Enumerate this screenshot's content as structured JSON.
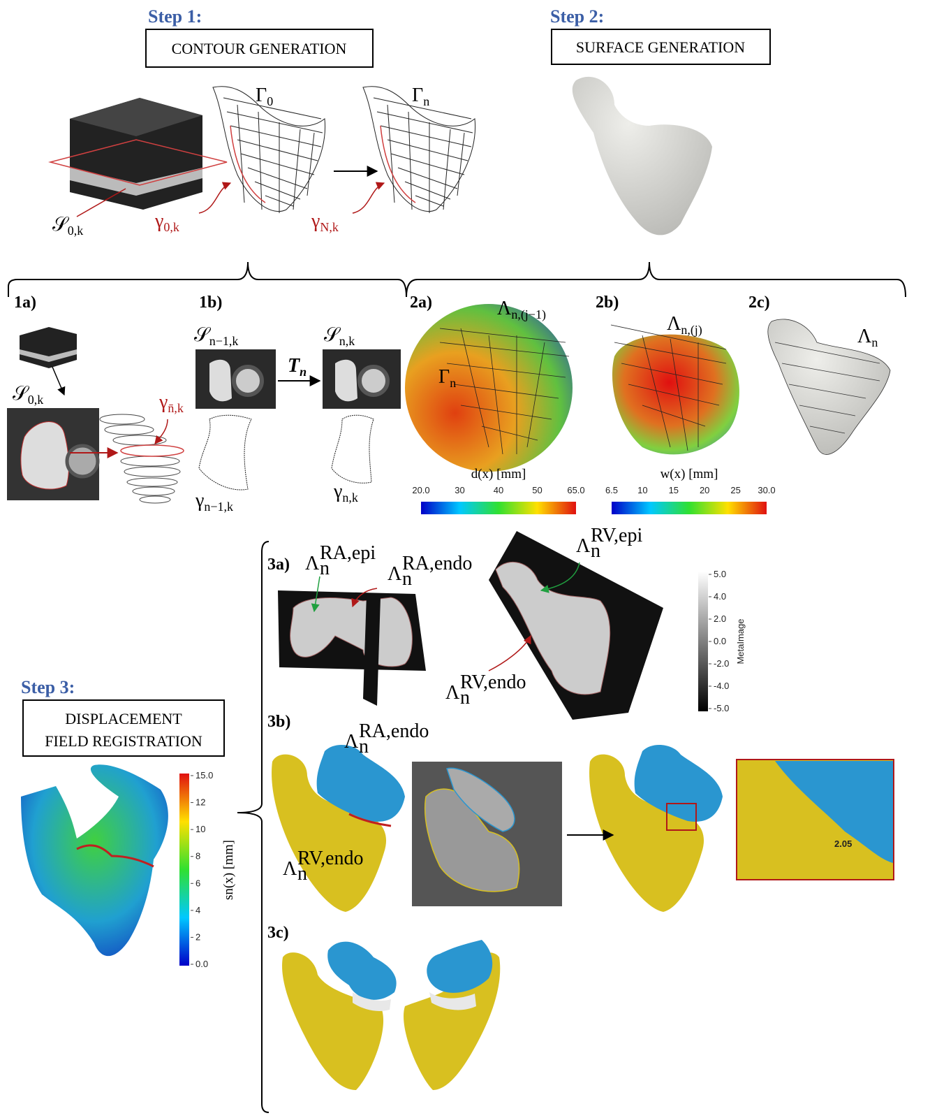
{
  "steps": [
    {
      "title": "Step 1:",
      "box": [
        "CONTOUR GENERATION"
      ]
    },
    {
      "title": "Step 2:",
      "box": [
        "SURFACE GENERATION"
      ]
    },
    {
      "title": "Step 3:",
      "box": [
        "DISPLACEMENT",
        "FIELD REGISTRATION"
      ]
    }
  ],
  "panels": [
    "1a)",
    "1b)",
    "2a)",
    "2b)",
    "2c)",
    "3a)",
    "3b)",
    "3c)"
  ],
  "math": [
    {
      "base": "Γ",
      "sub": "0"
    },
    {
      "base": "Γ",
      "sub": "n"
    },
    {
      "base": "𝒮",
      "sub": "0,k"
    },
    {
      "base": "γ",
      "sub": "0,k"
    },
    {
      "base": "γ",
      "sub": "N,k"
    },
    {
      "base": "𝒮",
      "sub": "0,k"
    },
    {
      "base": "γ",
      "sub": "n̄,k"
    },
    {
      "base": "𝒮",
      "sub": "n−1,k"
    },
    {
      "base": "𝒮",
      "sub": "n,k"
    },
    {
      "base": "T",
      "sub": "n"
    },
    {
      "base": "γ",
      "sub": "n−1,k"
    },
    {
      "base": "γ",
      "sub": "n,k"
    },
    {
      "base": "Λ",
      "sub": "n,(j−1)"
    },
    {
      "base": "Γ",
      "sub": "n"
    },
    {
      "base": "Λ",
      "sub": "n,(j)"
    },
    {
      "base": "Λ",
      "sub": "n"
    },
    {
      "base": "Λ",
      "sub": "n",
      "sup": "RA,epi"
    },
    {
      "base": "Λ",
      "sub": "n",
      "sup": "RA,endo"
    },
    {
      "base": "Λ",
      "sub": "n",
      "sup": "RV,epi"
    },
    {
      "base": "Λ",
      "sub": "n",
      "sup": "RV,endo"
    },
    {
      "base": "Λ",
      "sub": "n",
      "sup": "RA,endo"
    },
    {
      "base": "Λ",
      "sub": "n",
      "sup": "RV,endo"
    }
  ],
  "colorbars": [
    {
      "label": "d(x) [mm]",
      "ticks": [
        "20.0",
        "30",
        "40",
        "50",
        "65.0"
      ]
    },
    {
      "label": "w(x) [mm]",
      "ticks": [
        "6.5",
        "10",
        "15",
        "20",
        "25",
        "30.0"
      ]
    },
    {
      "label": "MetaImage",
      "ticks": [
        "5.0",
        "4.0",
        "2.0",
        "0.0",
        "-2.0",
        "-4.0",
        "-5.0"
      ]
    },
    {
      "label": "sn(x) [mm]",
      "ticks": [
        "15.0",
        "12",
        "10",
        "8",
        "6",
        "4",
        "2",
        "0.0"
      ]
    }
  ],
  "zoom_label": "2.05"
}
